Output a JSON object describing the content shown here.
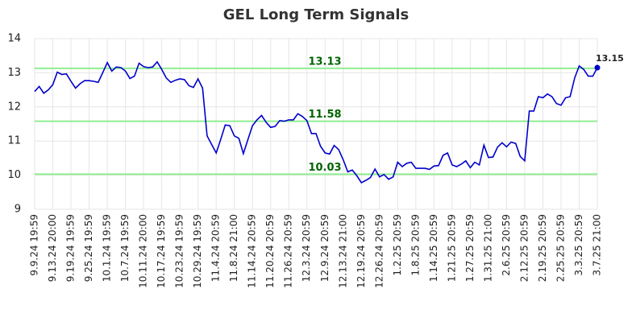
{
  "chart_data": {
    "type": "line",
    "title": "GEL Long Term Signals",
    "categories": [
      "9.9.24 19:59",
      null,
      null,
      null,
      "9.13.24 20:00",
      null,
      null,
      null,
      "9.19.24 19:59",
      null,
      null,
      null,
      "9.25.24 19:59",
      null,
      null,
      null,
      "10.1.24 19:59",
      null,
      null,
      null,
      "10.7.24 19:59",
      null,
      null,
      null,
      "10.11.24 20:00",
      null,
      null,
      null,
      "10.17.24 19:59",
      null,
      null,
      null,
      "10.23.24 19:59",
      null,
      null,
      null,
      "10.29.24 19:59",
      null,
      null,
      null,
      "11.4.24 20:59",
      null,
      null,
      null,
      "11.8.24 21:00",
      null,
      null,
      null,
      "11.14.24 20:59",
      null,
      null,
      null,
      "11.20.24 20:59",
      null,
      null,
      null,
      "11.26.24 20:59",
      null,
      null,
      null,
      "12.3.24 20:59",
      null,
      null,
      null,
      "12.9.24 20:59",
      null,
      null,
      null,
      "12.13.24 21:00",
      null,
      null,
      null,
      "12.19.24 20:59",
      null,
      null,
      null,
      "12.26.24 20:59",
      null,
      null,
      null,
      "1.2.25 20:59",
      null,
      null,
      null,
      "1.8.25 20:59",
      null,
      null,
      null,
      "1.14.25 20:59",
      null,
      null,
      null,
      "1.21.25 20:59",
      null,
      null,
      null,
      "1.27.25 20:59",
      null,
      null,
      null,
      "1.31.25 21:00",
      null,
      null,
      null,
      "2.6.25 20:59",
      null,
      null,
      null,
      "2.12.25 20:59",
      null,
      null,
      null,
      "2.19.25 20:59",
      null,
      null,
      null,
      "2.25.25 20:59",
      null,
      null,
      null,
      "3.3.25 20:59",
      null,
      null,
      null,
      "3.7.25 21:00"
    ],
    "values": [
      12.45,
      12.6,
      12.4,
      12.5,
      12.65,
      13.02,
      12.95,
      12.97,
      12.75,
      12.55,
      12.68,
      12.77,
      12.77,
      12.75,
      12.72,
      13.0,
      13.3,
      13.05,
      13.17,
      13.15,
      13.05,
      12.83,
      12.9,
      13.28,
      13.18,
      13.15,
      13.17,
      13.32,
      13.1,
      12.85,
      12.72,
      12.78,
      12.82,
      12.8,
      12.62,
      12.57,
      12.82,
      12.55,
      11.15,
      10.9,
      10.65,
      11.05,
      11.47,
      11.45,
      11.15,
      11.08,
      10.63,
      11.05,
      11.45,
      11.62,
      11.75,
      11.55,
      11.4,
      11.43,
      11.6,
      11.58,
      11.62,
      11.62,
      11.8,
      11.72,
      11.6,
      11.22,
      11.22,
      10.85,
      10.65,
      10.62,
      10.87,
      10.75,
      10.45,
      10.1,
      10.15,
      9.98,
      9.78,
      9.85,
      9.93,
      10.18,
      9.95,
      10.02,
      9.88,
      9.95,
      10.38,
      10.25,
      10.35,
      10.38,
      10.2,
      10.2,
      10.2,
      10.17,
      10.27,
      10.28,
      10.58,
      10.65,
      10.3,
      10.25,
      10.32,
      10.42,
      10.22,
      10.38,
      10.3,
      10.88,
      10.52,
      10.53,
      10.82,
      10.95,
      10.83,
      10.97,
      10.93,
      10.55,
      10.42,
      11.88,
      11.88,
      12.3,
      12.27,
      12.38,
      12.3,
      12.1,
      12.05,
      12.27,
      12.3,
      12.85,
      13.2,
      13.1,
      12.9,
      12.9,
      13.15
    ],
    "color": "#0000cc",
    "hlines": [
      13.13,
      11.58,
      10.03
    ],
    "hline_color": "#90ee90",
    "hline_label_color": "#006400",
    "ylim": [
      9,
      14
    ],
    "yticks": [
      9,
      10,
      11,
      12,
      13,
      14
    ],
    "grid": true
  }
}
